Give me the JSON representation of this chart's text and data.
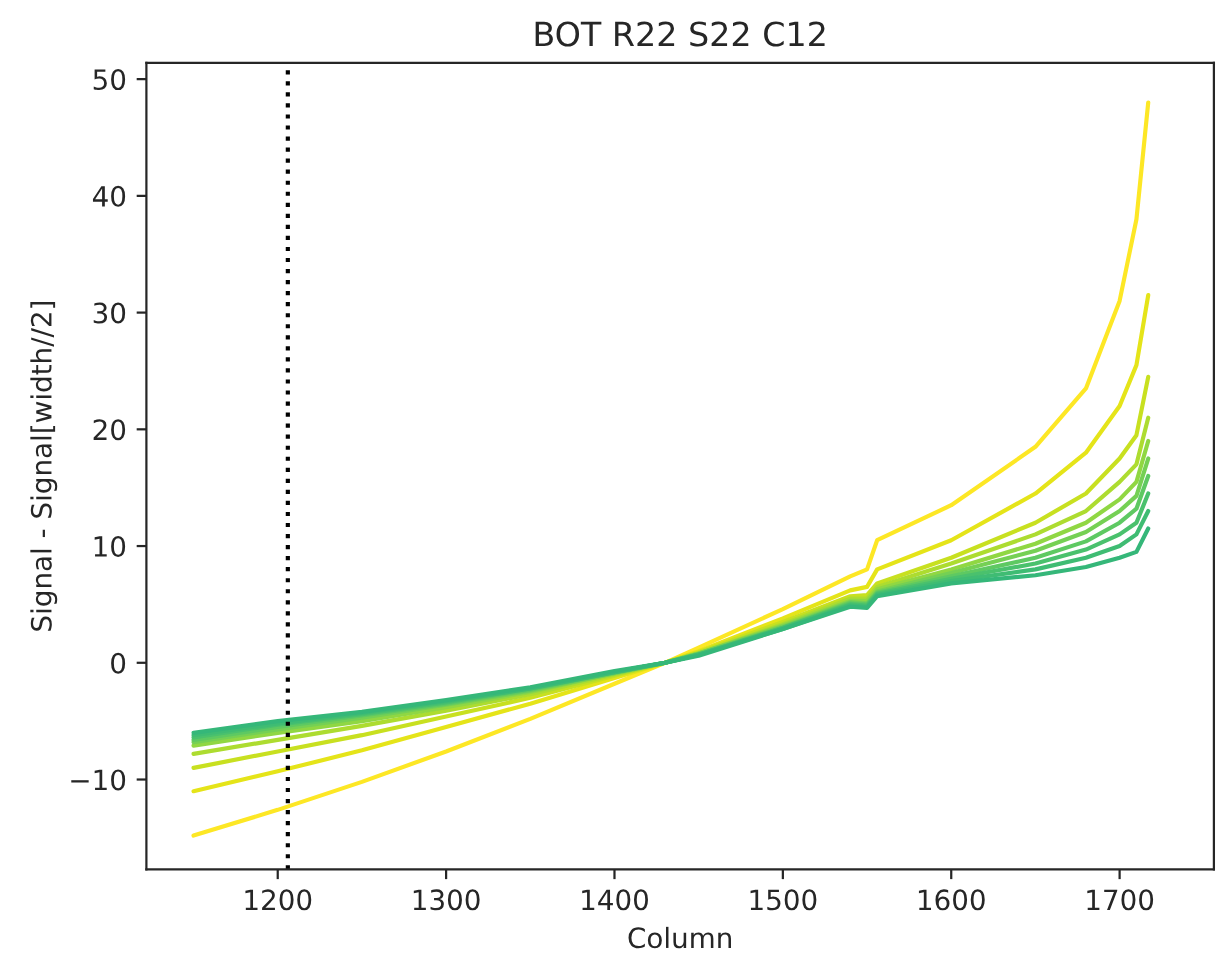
{
  "chart_data": {
    "type": "line",
    "title": "BOT R22 S22 C12",
    "xlabel": "Column",
    "ylabel": "Signal - Signal[width//2]",
    "x": [
      1150,
      1200,
      1250,
      1300,
      1350,
      1400,
      1430,
      1450,
      1500,
      1540,
      1550,
      1556,
      1600,
      1650,
      1680,
      1700,
      1710,
      1717
    ],
    "series": [
      {
        "color": "#fde725",
        "values": [
          -14.8,
          -12.6,
          -10.2,
          -7.6,
          -4.8,
          -1.8,
          0,
          1.3,
          4.6,
          7.4,
          8,
          10.5,
          13.5,
          18.5,
          23.5,
          31,
          38,
          48
        ]
      },
      {
        "color": "#e5e419",
        "values": [
          -11,
          -9.3,
          -7.5,
          -5.5,
          -3.5,
          -1.3,
          0,
          1,
          3.8,
          6.2,
          6.5,
          8,
          10.5,
          14.5,
          18,
          22,
          25.5,
          31.5
        ]
      },
      {
        "color": "#c8e020",
        "values": [
          -9,
          -7.6,
          -6.2,
          -4.6,
          -3,
          -1.1,
          0,
          0.9,
          3.5,
          5.7,
          5.8,
          6.8,
          9,
          12,
          14.5,
          17.5,
          19.5,
          24.5
        ]
      },
      {
        "color": "#addc30",
        "values": [
          -7.8,
          -6.6,
          -5.4,
          -4.1,
          -2.7,
          -1,
          0,
          0.8,
          3.3,
          5.5,
          5.5,
          6.5,
          8.5,
          11,
          13,
          15.5,
          17,
          21
        ]
      },
      {
        "color": "#90d743",
        "values": [
          -7.1,
          -6,
          -5,
          -3.8,
          -2.5,
          -0.9,
          0,
          0.8,
          3.2,
          5.3,
          5.3,
          6.3,
          8,
          10.2,
          12,
          14,
          15.5,
          19
        ]
      },
      {
        "color": "#75d054",
        "values": [
          -6.8,
          -5.7,
          -4.7,
          -3.6,
          -2.4,
          -0.9,
          0,
          0.8,
          3.1,
          5.2,
          5.1,
          6.1,
          7.7,
          9.6,
          11.2,
          13,
          14.3,
          17.5
        ]
      },
      {
        "color": "#5ec962",
        "values": [
          -6.6,
          -5.5,
          -4.5,
          -3.5,
          -2.3,
          -0.8,
          0,
          0.7,
          3,
          5.1,
          5,
          6,
          7.4,
          9,
          10.4,
          12,
          13.2,
          16
        ]
      },
      {
        "color": "#4ac16d",
        "values": [
          -6.4,
          -5.3,
          -4.4,
          -3.4,
          -2.2,
          -0.8,
          0,
          0.7,
          3,
          5,
          4.9,
          5.9,
          7.2,
          8.5,
          9.7,
          11,
          12,
          14.5
        ]
      },
      {
        "color": "#3fbc73",
        "values": [
          -6.2,
          -5.2,
          -4.3,
          -3.3,
          -2.2,
          -0.8,
          0,
          0.7,
          2.9,
          4.9,
          4.8,
          5.8,
          7,
          8,
          9,
          10,
          11,
          13
        ]
      },
      {
        "color": "#35b779",
        "values": [
          -6,
          -5,
          -4.2,
          -3.2,
          -2.1,
          -0.7,
          0,
          0.6,
          2.9,
          4.8,
          4.7,
          5.7,
          6.8,
          7.5,
          8.2,
          9,
          9.5,
          11.5
        ]
      }
    ],
    "xlim": [
      1122,
      1756
    ],
    "ylim": [
      -17.7,
      51.4
    ],
    "xticks": [
      1200,
      1300,
      1400,
      1500,
      1600,
      1700
    ],
    "yticks": [
      {
        "value": -10,
        "label": "−10"
      },
      0,
      10,
      20,
      30,
      40,
      50
    ],
    "ref_lines": [
      {
        "axis": "x",
        "value": 1206,
        "color": "#000000",
        "line_style": "dotted"
      }
    ],
    "grid": false,
    "legend": false
  }
}
